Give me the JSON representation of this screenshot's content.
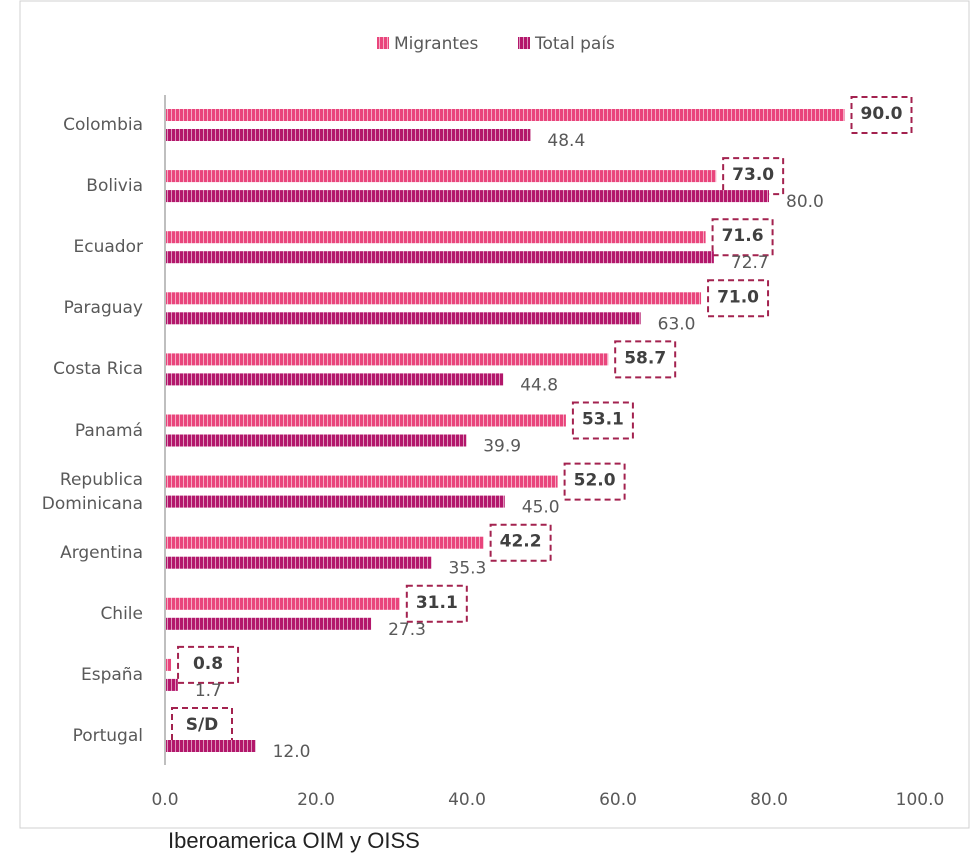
{
  "chart_data": {
    "type": "bar",
    "orientation": "horizontal",
    "categories": [
      "Colombia",
      "Bolivia",
      "Ecuador",
      "Paraguay",
      "Costa Rica",
      "Panamá",
      "Republica Dominicana",
      "Argentina",
      "Chile",
      "España",
      "Portugal"
    ],
    "series": [
      {
        "name": "Migrantes",
        "color": "#e9457c",
        "values": [
          90.0,
          73.0,
          71.6,
          71.0,
          58.7,
          53.1,
          52.0,
          42.2,
          31.1,
          0.8,
          null
        ],
        "value_labels": [
          "90.0",
          "73.0",
          "71.6",
          "71.0",
          "58.7",
          "53.1",
          "52.0",
          "42.2",
          "31.1",
          "0.8",
          "S/D"
        ]
      },
      {
        "name": "Total país",
        "color": "#b3176b",
        "values": [
          48.4,
          80.0,
          72.7,
          63.0,
          44.8,
          39.9,
          45.0,
          35.3,
          27.3,
          1.7,
          12.0
        ],
        "value_labels": [
          "48.4",
          "80.0",
          "72.7",
          "63.0",
          "44.8",
          "39.9",
          "45.0",
          "35.3",
          "27.3",
          "1.7",
          "12.0"
        ]
      }
    ],
    "xlim": [
      0,
      100
    ],
    "xticks": [
      {
        "value": 0,
        "label": "0.0"
      },
      {
        "value": 20,
        "label": "20.0"
      },
      {
        "value": 40,
        "label": "40.0"
      },
      {
        "value": 60,
        "label": "60.0"
      },
      {
        "value": 80,
        "label": "80.0"
      },
      {
        "value": 100,
        "label": "100.0"
      }
    ],
    "legend": "top",
    "source": "Iberoamerica OIM y OISS"
  }
}
